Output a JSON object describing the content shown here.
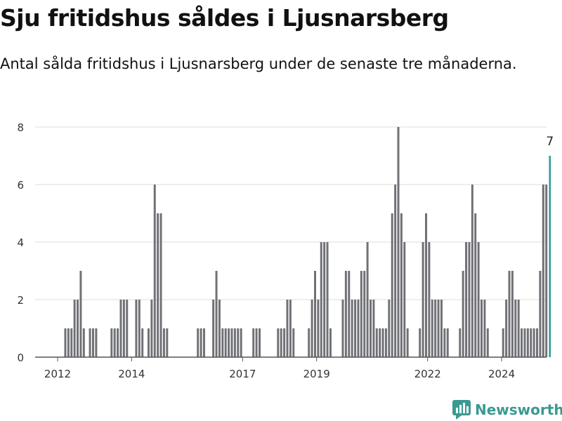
{
  "title": "Sju fritidshus såldes i Ljusnarsberg",
  "subtitle": "Antal sålda fritidshus i Ljusnarsberg under de senaste tre månaderna.",
  "brand": {
    "name": "Newsworthy",
    "icon": "newsworthy-logo-icon",
    "color": "#3a9a92"
  },
  "colors": {
    "bar": "#707176",
    "highlight": "#2a9d95",
    "grid": "#dedede",
    "axis": "#555555"
  },
  "chart_data": {
    "type": "bar",
    "title": "",
    "xlabel": "",
    "ylabel": "",
    "ylim": [
      0,
      8
    ],
    "yticks": [
      0,
      2,
      4,
      6,
      8
    ],
    "grid": true,
    "x_ticks": [
      {
        "label": "2012",
        "value": 2012.0
      },
      {
        "label": "2014",
        "value": 2014.0
      },
      {
        "label": "2017",
        "value": 2017.0
      },
      {
        "label": "2019",
        "value": 2019.0
      },
      {
        "label": "2022",
        "value": 2022.0
      },
      {
        "label": "2024",
        "value": 2024.0
      }
    ],
    "start": "2012-01",
    "frequency": "monthly",
    "values": [
      0,
      0,
      1,
      1,
      1,
      2,
      2,
      3,
      1,
      0,
      1,
      1,
      1,
      0,
      0,
      0,
      0,
      1,
      1,
      1,
      2,
      2,
      2,
      0,
      0,
      2,
      2,
      1,
      0,
      1,
      2,
      6,
      5,
      5,
      1,
      1,
      0,
      0,
      0,
      0,
      0,
      0,
      0,
      0,
      0,
      1,
      1,
      1,
      0,
      0,
      2,
      3,
      2,
      1,
      1,
      1,
      1,
      1,
      1,
      1,
      0,
      0,
      0,
      1,
      1,
      1,
      0,
      0,
      0,
      0,
      0,
      1,
      1,
      1,
      2,
      2,
      1,
      0,
      0,
      0,
      0,
      1,
      2,
      3,
      2,
      4,
      4,
      4,
      1,
      0,
      0,
      0,
      2,
      3,
      3,
      2,
      2,
      2,
      3,
      3,
      4,
      2,
      2,
      1,
      1,
      1,
      1,
      2,
      5,
      6,
      8,
      5,
      4,
      1,
      0,
      0,
      0,
      1,
      4,
      5,
      4,
      2,
      2,
      2,
      2,
      1,
      1,
      0,
      0,
      0,
      1,
      3,
      4,
      4,
      6,
      5,
      4,
      2,
      2,
      1,
      0,
      0,
      0,
      0,
      1,
      2,
      3,
      3,
      2,
      2,
      1,
      1,
      1,
      1,
      1,
      1,
      3,
      6,
      6,
      7
    ],
    "highlight": {
      "label": "7",
      "value": 7
    }
  }
}
